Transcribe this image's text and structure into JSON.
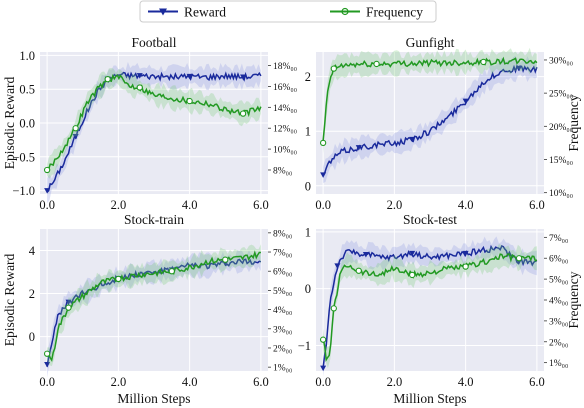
{
  "legend": [
    {
      "label": "Reward",
      "color": "#1a2a9c",
      "marker": "triangle-down"
    },
    {
      "label": "Frequency",
      "color": "#229922",
      "marker": "circle"
    }
  ],
  "chart_data": [
    {
      "type": "line",
      "title": "Football",
      "xlabel": "",
      "ylabel": "Episodic Reward",
      "ylabel_right": "",
      "xlim": [
        -0.2,
        6.2
      ],
      "xticks": [
        0,
        2,
        4,
        6
      ],
      "xtick_labels": [
        "0.0",
        "2.0",
        "4.0",
        "6.0"
      ],
      "ylim": [
        -1.05,
        1.05
      ],
      "yticks": [
        -1.0,
        -0.5,
        0.0,
        0.5,
        1.0
      ],
      "ytick_labels": [
        "−1.0",
        "−0.5",
        "0.0",
        "0.5",
        "1.0"
      ],
      "y2lim": [
        5.7,
        19.3
      ],
      "y2ticks": [
        8,
        10,
        12,
        14,
        16,
        18
      ],
      "y2tick_labels": [
        "8%₀₀",
        "10%₀₀",
        "12%₀₀",
        "14%₀₀",
        "16%₀₀",
        "18%₀₀"
      ],
      "grid": true,
      "series": [
        {
          "name": "Reward",
          "axis": "left",
          "color": "#1a2a9c",
          "marker": "triangle-down",
          "x": [
            0,
            0.2,
            0.5,
            0.8,
            1.1,
            1.4,
            1.7,
            2.0,
            2.3,
            2.6,
            3.0,
            3.5,
            4.0,
            4.5,
            5.0,
            5.5,
            6.0
          ],
          "y": [
            -1.0,
            -0.85,
            -0.55,
            -0.2,
            0.15,
            0.45,
            0.65,
            0.72,
            0.7,
            0.7,
            0.69,
            0.68,
            0.69,
            0.68,
            0.7,
            0.68,
            0.7
          ]
        },
        {
          "name": "Frequency",
          "axis": "right",
          "color": "#229922",
          "marker": "circle",
          "x": [
            0,
            0.2,
            0.5,
            0.8,
            1.1,
            1.4,
            1.7,
            2.0,
            2.3,
            2.6,
            3.0,
            3.5,
            4.0,
            4.5,
            5.0,
            5.5,
            6.0
          ],
          "y": [
            8.0,
            8.8,
            10.3,
            12.0,
            14.3,
            15.7,
            16.7,
            16.9,
            16.1,
            15.9,
            15.2,
            14.9,
            14.6,
            14.4,
            13.8,
            13.4,
            13.9
          ]
        }
      ]
    },
    {
      "type": "line",
      "title": "Gunfight",
      "xlabel": "",
      "ylabel": "",
      "ylabel_right": "Frequency",
      "xlim": [
        -0.2,
        6.2
      ],
      "xticks": [
        0,
        2,
        4,
        6
      ],
      "xtick_labels": [
        "0.0",
        "2.0",
        "4.0",
        "6.0"
      ],
      "ylim": [
        -0.15,
        2.45
      ],
      "yticks": [
        0,
        1,
        2
      ],
      "ytick_labels": [
        "0",
        "1",
        "2"
      ],
      "y2lim": [
        9.8,
        31.2
      ],
      "y2ticks": [
        10,
        15,
        20,
        25,
        30
      ],
      "y2tick_labels": [
        "10%₀₀",
        "15%₀₀",
        "20%₀₀",
        "25%₀₀",
        "30%₀₀"
      ],
      "grid": true,
      "series": [
        {
          "name": "Reward",
          "axis": "left",
          "color": "#1a2a9c",
          "marker": "triangle-down",
          "x": [
            0,
            0.2,
            0.5,
            1.0,
            1.5,
            2.0,
            2.5,
            3.0,
            3.5,
            4.0,
            4.5,
            5.0,
            5.5,
            6.0
          ],
          "y": [
            0.2,
            0.45,
            0.62,
            0.7,
            0.75,
            0.78,
            0.85,
            1.0,
            1.25,
            1.55,
            1.9,
            2.1,
            2.15,
            2.12
          ]
        },
        {
          "name": "Frequency",
          "axis": "right",
          "color": "#229922",
          "marker": "circle",
          "x": [
            0,
            0.1,
            0.2,
            0.3,
            0.5,
            0.8,
            1.5,
            2.5,
            3.5,
            4.5,
            5.5,
            6.0
          ],
          "y": [
            17.5,
            24.0,
            27.3,
            28.7,
            29.1,
            29.3,
            29.4,
            29.5,
            29.6,
            29.7,
            29.8,
            29.8
          ]
        }
      ]
    },
    {
      "type": "line",
      "title": "Stock-train",
      "xlabel": "Million Steps",
      "ylabel": "Episodic Reward",
      "ylabel_right": "",
      "xlim": [
        -0.2,
        6.2
      ],
      "xticks": [
        0,
        2,
        4,
        6
      ],
      "xtick_labels": [
        "0.0",
        "2.0",
        "4.0",
        "6.0"
      ],
      "ylim": [
        -1.6,
        5.0
      ],
      "yticks": [
        0,
        2,
        4
      ],
      "ytick_labels": [
        "0",
        "2",
        "4"
      ],
      "y2lim": [
        0.8,
        8.2
      ],
      "y2ticks": [
        1,
        2,
        3,
        4,
        5,
        6,
        7,
        8
      ],
      "y2tick_labels": [
        "1%₀₀",
        "2%₀₀",
        "3%₀₀",
        "4%₀₀",
        "5%₀₀",
        "6%₀₀",
        "7%₀₀",
        "8%₀₀"
      ],
      "grid": true,
      "series": [
        {
          "name": "Reward",
          "axis": "left",
          "color": "#1a2a9c",
          "marker": "triangle-down",
          "x": [
            0,
            0.15,
            0.3,
            0.6,
            1.0,
            1.5,
            2.0,
            2.5,
            3.0,
            3.5,
            4.0,
            4.5,
            5.0,
            5.5,
            6.0
          ],
          "y": [
            -1.3,
            -0.1,
            0.9,
            1.6,
            2.0,
            2.4,
            2.7,
            2.9,
            3.0,
            3.1,
            3.3,
            3.3,
            3.4,
            3.5,
            3.5
          ]
        },
        {
          "name": "Frequency",
          "axis": "right",
          "color": "#229922",
          "marker": "circle",
          "x": [
            0,
            0.15,
            0.3,
            0.6,
            1.0,
            1.5,
            2.0,
            2.5,
            3.0,
            3.5,
            4.0,
            4.5,
            5.0,
            5.5,
            6.0
          ],
          "y": [
            1.7,
            1.4,
            3.0,
            4.1,
            4.7,
            5.4,
            5.6,
            5.8,
            5.9,
            6.0,
            6.2,
            6.5,
            6.6,
            6.7,
            6.9
          ]
        }
      ]
    },
    {
      "type": "line",
      "title": "Stock-test",
      "xlabel": "Million Steps",
      "ylabel": "",
      "ylabel_right": "Frequency",
      "xlim": [
        -0.2,
        6.2
      ],
      "xticks": [
        0,
        2,
        4,
        6
      ],
      "xtick_labels": [
        "0.0",
        "2.0",
        "4.0",
        "6.0"
      ],
      "ylim": [
        -1.45,
        1.05
      ],
      "yticks": [
        -1,
        0,
        1
      ],
      "ytick_labels": [
        "−1",
        "0",
        "1"
      ],
      "y2lim": [
        0.6,
        7.4
      ],
      "y2ticks": [
        1,
        2,
        3,
        4,
        5,
        6,
        7
      ],
      "y2tick_labels": [
        "1%₀₀",
        "2%₀₀",
        "3%₀₀",
        "4%₀₀",
        "5%₀₀",
        "6%₀₀",
        "7%₀₀"
      ],
      "grid": true,
      "series": [
        {
          "name": "Reward",
          "axis": "left",
          "color": "#1a2a9c",
          "marker": "triangle-down",
          "x": [
            0,
            0.1,
            0.2,
            0.4,
            0.6,
            0.8,
            1.2,
            1.6,
            2.0,
            2.5,
            3.0,
            3.5,
            4.0,
            4.5,
            5.0,
            5.5,
            6.0
          ],
          "y": [
            -1.4,
            -0.9,
            -0.2,
            0.4,
            0.62,
            0.65,
            0.6,
            0.55,
            0.55,
            0.62,
            0.55,
            0.58,
            0.62,
            0.68,
            0.72,
            0.48,
            0.45
          ]
        },
        {
          "name": "Frequency",
          "axis": "right",
          "color": "#229922",
          "marker": "circle",
          "x": [
            0,
            0.1,
            0.2,
            0.3,
            0.5,
            0.7,
            1.0,
            1.5,
            2.0,
            2.5,
            3.0,
            3.5,
            4.0,
            4.5,
            5.0,
            5.5,
            6.0
          ],
          "y": [
            2.1,
            1.1,
            1.5,
            3.6,
            5.4,
            5.7,
            5.4,
            5.2,
            5.5,
            5.2,
            5.3,
            5.5,
            5.6,
            5.8,
            6.1,
            6.0,
            6.0
          ]
        }
      ]
    }
  ]
}
